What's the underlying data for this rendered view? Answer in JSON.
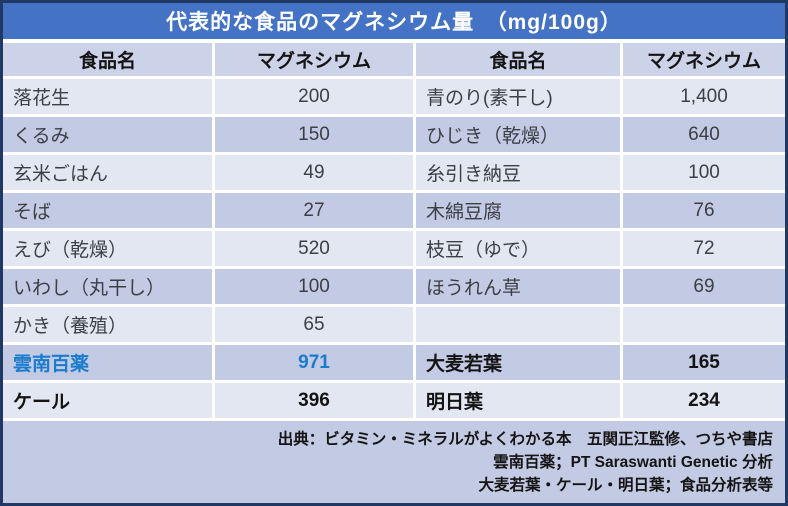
{
  "title": "代表的な食品のマグネシウム量　（mg/100g）",
  "table": {
    "headers": [
      "食品名",
      "マグネシウム",
      "食品名",
      "マグネシウム"
    ],
    "left_rows": [
      {
        "name": "落花生",
        "value": "200"
      },
      {
        "name": "くるみ",
        "value": "150"
      },
      {
        "name": "玄米ごはん",
        "value": "49"
      },
      {
        "name": "そば",
        "value": "27"
      },
      {
        "name": "えび（乾燥）",
        "value": "520"
      },
      {
        "name": "いわし（丸干し）",
        "value": "100"
      },
      {
        "name": "かき（養殖）",
        "value": "65"
      },
      {
        "name": "雲南百薬",
        "value": "971"
      },
      {
        "name": "ケール",
        "value": "396"
      }
    ],
    "right_rows": [
      {
        "name": "青のり(素干し)",
        "value": "1,400"
      },
      {
        "name": "ひじき（乾燥）",
        "value": "640"
      },
      {
        "name": "糸引き納豆",
        "value": "100"
      },
      {
        "name": "木綿豆腐",
        "value": "76"
      },
      {
        "name": "枝豆（ゆで）",
        "value": "72"
      },
      {
        "name": "ほうれん草",
        "value": "69"
      },
      {
        "name": "",
        "value": ""
      },
      {
        "name": "大麦若葉",
        "value": "165"
      },
      {
        "name": "明日葉",
        "value": "234"
      }
    ],
    "emphasized_rows": [
      "雲南百薬",
      "ケール",
      "大麦若葉",
      "明日葉"
    ]
  },
  "footer": {
    "lines": [
      "出典：ビタミン・ミネラルがよくわかる本　五関正江監修、つちや書店",
      "雲南百薬；PT Saraswanti Genetic 分析",
      "大麦若葉・ケール・明日葉；食品分析表等"
    ]
  },
  "colors": {
    "title_bar": "#4472C4",
    "header_bg": "#CCD3E9",
    "band_light": "#E3E7F1",
    "band_dark": "#C3CAE3",
    "highlight_blue_text": "#1B7CCD",
    "outer_border": "#1F3864"
  }
}
